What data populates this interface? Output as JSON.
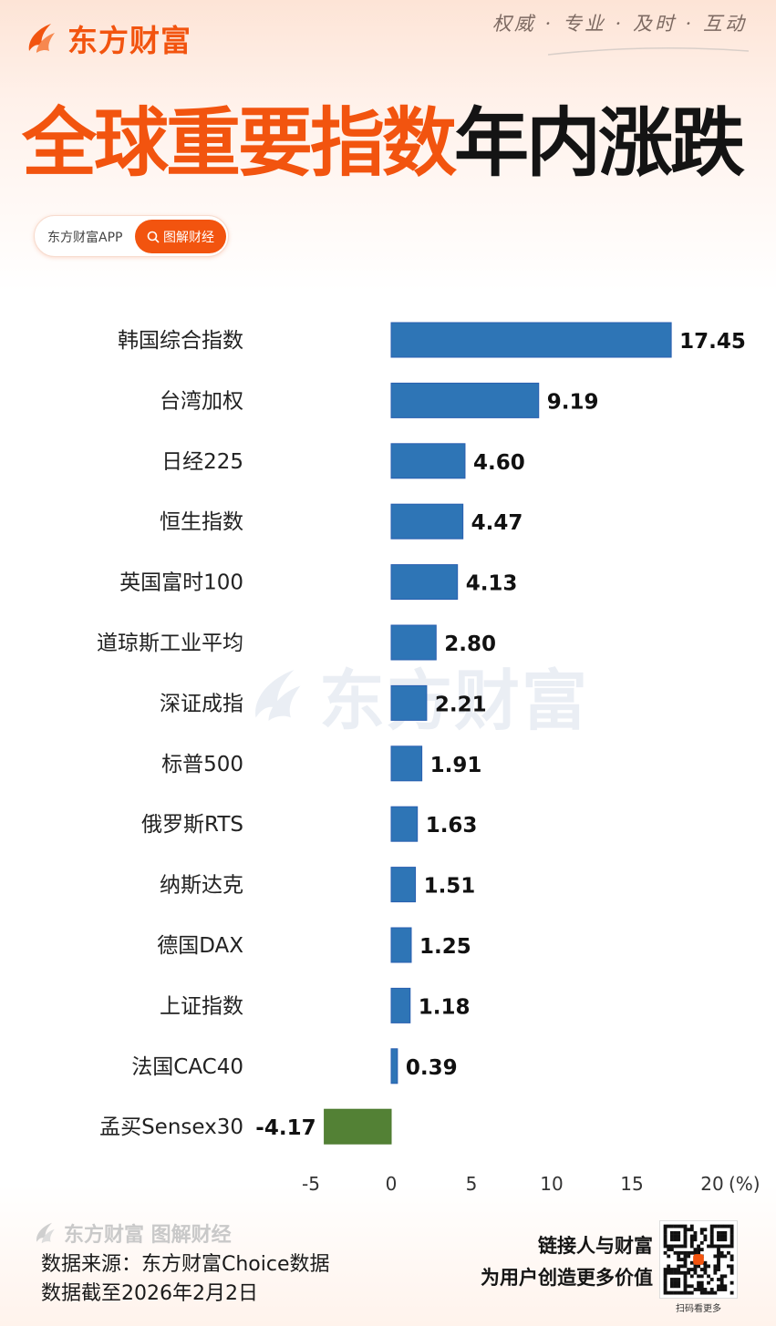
{
  "brand": {
    "name": "东方财富",
    "slogan": "权威 · 专业 · 及时 · 互动",
    "accent_color": "#f2540f"
  },
  "headline": {
    "orange_part": "全球重要指数",
    "black_part": "年内涨跌"
  },
  "pill": {
    "app_label": "东方财富APP",
    "button_label": "图解财经",
    "button_icon": "search-icon"
  },
  "watermark": "东方财富",
  "chart_data": {
    "type": "bar",
    "orientation": "horizontal",
    "categories": [
      "韩国综合指数",
      "台湾加权",
      "日经225",
      "恒生指数",
      "英国富时100",
      "道琼斯工业平均",
      "深证成指",
      "标普500",
      "俄罗斯RTS",
      "纳斯达克",
      "德国DAX",
      "上证指数",
      "法国CAC40",
      "孟买Sensex30"
    ],
    "values": [
      17.45,
      9.19,
      4.6,
      4.47,
      4.13,
      2.8,
      2.21,
      1.91,
      1.63,
      1.51,
      1.25,
      1.18,
      0.39,
      -4.17
    ],
    "value_labels": [
      "17.45",
      "9.19",
      "4.60",
      "4.47",
      "4.13",
      "2.80",
      "2.21",
      "1.91",
      "1.63",
      "1.51",
      "1.25",
      "1.18",
      "0.39",
      "-4.17"
    ],
    "xlim": [
      -5,
      20
    ],
    "xticks": [
      -5,
      0,
      5,
      10,
      15,
      20
    ],
    "xtick_labels": [
      "-5",
      "0",
      "5",
      "10",
      "15",
      "20"
    ],
    "unit_label": "(%)",
    "positive_color": "#2e75b6",
    "negative_color": "#538135",
    "grid": false
  },
  "footer": {
    "brand_text": "东方财富 图解财经",
    "source_line": "数据来源：东方财富Choice数据",
    "date_line": "数据截至2026年2月2日",
    "promo_line1": "链接人与财富",
    "promo_line2": "为用户创造更多价值",
    "qr_label": "扫码看更多"
  }
}
